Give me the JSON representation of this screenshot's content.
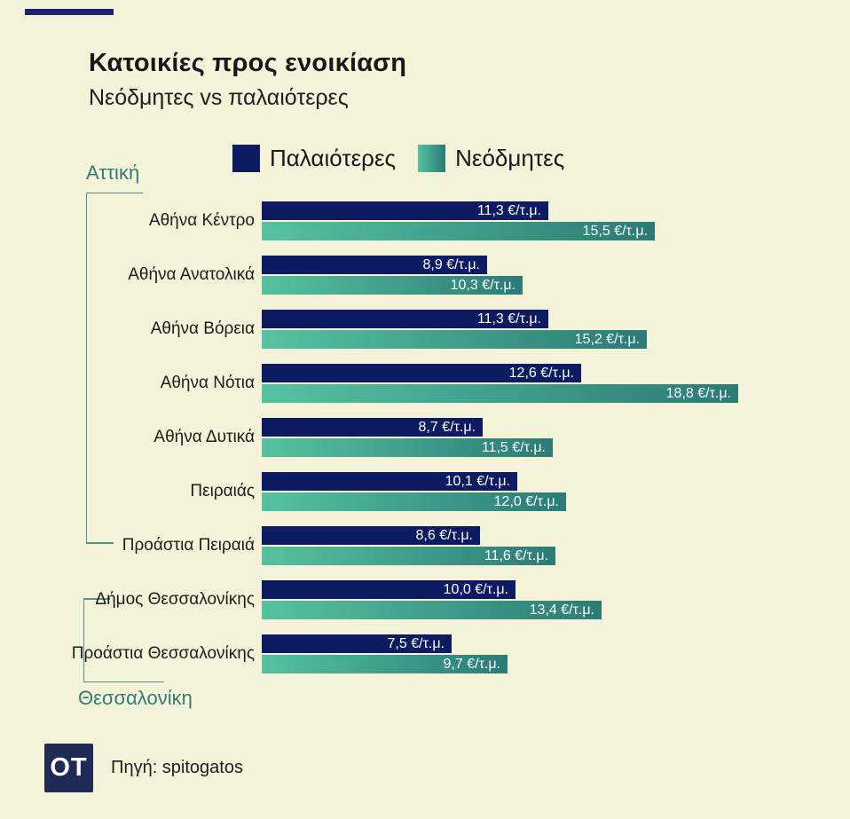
{
  "header": {
    "title": "Κατοικίες προς ενοικίαση",
    "subtitle": "Νεόδμητες vs παλαιότερες"
  },
  "legend": [
    {
      "label": "Παλαιότερες",
      "color": "#0d1b63"
    },
    {
      "label": "Νεόδμητες",
      "gradient": [
        "#56c2a0",
        "#2b7b76"
      ]
    }
  ],
  "footer": {
    "logo": "OT",
    "source": "Πηγή: spitogatos"
  },
  "colors": {
    "background": "#f4f3da",
    "top_line": "#1b2176",
    "bar_navy": "#0d1b63",
    "teal_light": "#56c2a0",
    "teal_dark": "#2b7b76",
    "group_label": "#2e7d74",
    "bracket": "#4e968c",
    "logo_navy": "#1f2a55"
  },
  "chart_data": {
    "type": "bar",
    "orientation": "horizontal",
    "title": "Κατοικίες προς ενοικίαση",
    "subtitle": "Νεόδμητες vs παλαιότερες",
    "unit": "€/τ.μ.",
    "xmax": 18.8,
    "legend_position": "top",
    "grid": false,
    "categories": [
      "Αθήνα Κέντρο",
      "Αθήνα Ανατολικά",
      "Αθήνα Βόρεια",
      "Αθήνα Νότια",
      "Αθήνα Δυτικά",
      "Πειραιάς",
      "Προάστια Πειραιά",
      "Δήμος Θεσσαλονίκης",
      "Προάστια Θεσσαλονίκης"
    ],
    "groups": [
      {
        "label": "Αττική",
        "rows": [
          0,
          6
        ]
      },
      {
        "label": "Θεσσαλονίκη",
        "rows": [
          7,
          8
        ]
      }
    ],
    "series": [
      {
        "name": "Παλαιότερες",
        "values": [
          11.3,
          8.9,
          11.3,
          12.6,
          8.7,
          10.1,
          8.6,
          10.0,
          7.5
        ],
        "labels": [
          "11,3 €/τ.μ.",
          "8,9 €/τ.μ.",
          "11,3 €/τ.μ.",
          "12,6 €/τ.μ.",
          "8,7 €/τ.μ.",
          "10,1 €/τ.μ.",
          "8,6 €/τ.μ.",
          "10,0 €/τ.μ.",
          "7,5 €/τ.μ."
        ]
      },
      {
        "name": "Νεόδμητες",
        "values": [
          15.5,
          10.3,
          15.2,
          18.8,
          11.5,
          12.0,
          11.6,
          13.4,
          9.7
        ],
        "labels": [
          "15,5 €/τ.μ.",
          "10,3 €/τ.μ.",
          "15,2 €/τ.μ.",
          "18,8 €/τ.μ.",
          "11,5 €/τ.μ.",
          "12,0 €/τ.μ.",
          "11,6 €/τ.μ.",
          "13,4 €/τ.μ.",
          "9,7 €/τ.μ."
        ]
      }
    ]
  }
}
